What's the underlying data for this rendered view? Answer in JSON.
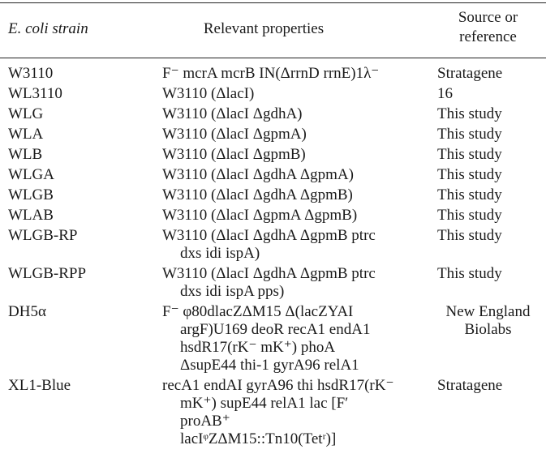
{
  "headers": {
    "strain": "E. coli strain",
    "properties": "Relevant properties",
    "source_line1": "Source or",
    "source_line2": "reference"
  },
  "rows": [
    {
      "strain": "W3110",
      "lines": [
        "F⁻ mcrA mcrB IN(ΔrrnD rrnE)1λ⁻"
      ],
      "source": [
        "Stratagene"
      ]
    },
    {
      "strain": "WL3110",
      "lines": [
        "W3110 (ΔlacI)"
      ],
      "source": [
        "16"
      ]
    },
    {
      "strain": "WLG",
      "lines": [
        "W3110 (ΔlacI ΔgdhA)"
      ],
      "source": [
        "This study"
      ]
    },
    {
      "strain": "WLA",
      "lines": [
        "W3110 (ΔlacI ΔgpmA)"
      ],
      "source": [
        "This study"
      ]
    },
    {
      "strain": "WLB",
      "lines": [
        "W3110 (ΔlacI ΔgpmB)"
      ],
      "source": [
        "This study"
      ]
    },
    {
      "strain": "WLGA",
      "lines": [
        "W3110 (ΔlacI ΔgdhA ΔgpmA)"
      ],
      "source": [
        "This study"
      ]
    },
    {
      "strain": "WLGB",
      "lines": [
        "W3110 (ΔlacI ΔgdhA ΔgpmB)"
      ],
      "source": [
        "This study"
      ]
    },
    {
      "strain": "WLAB",
      "lines": [
        "W3110 (ΔlacI ΔgpmA ΔgpmB)"
      ],
      "source": [
        "This study"
      ]
    },
    {
      "strain": "WLGB-RP",
      "lines": [
        "W3110 (ΔlacI ΔgdhA ΔgpmB ptrc",
        "dxs idi ispA)"
      ],
      "source": [
        "This study"
      ]
    },
    {
      "strain": "WLGB-RPP",
      "lines": [
        "W3110 (ΔlacI ΔgdhA ΔgpmB ptrc",
        "dxs idi ispA pps)"
      ],
      "source": [
        "This study"
      ]
    },
    {
      "strain": "DH5α",
      "lines": [
        "F⁻ φ80dlacZΔM15 Δ(lacZYAI",
        "argF)U169 deoR recA1 endA1",
        "hsdR17(rK⁻ mK⁺) phoA",
        "ΔsupE44 thi-1 gyrA96 relA1"
      ],
      "source": [
        "New England",
        "Biolabs"
      ]
    },
    {
      "strain": "XL1-Blue",
      "lines": [
        "recA1 endAI gyrA96 thi hsdR17(rK⁻",
        "mK⁺) supE44 relA1 lac [F′",
        "proAB⁺",
        "lacIᵠZΔM15::Tn10(Tetʳ)]"
      ],
      "source": [
        "Stratagene"
      ]
    }
  ]
}
